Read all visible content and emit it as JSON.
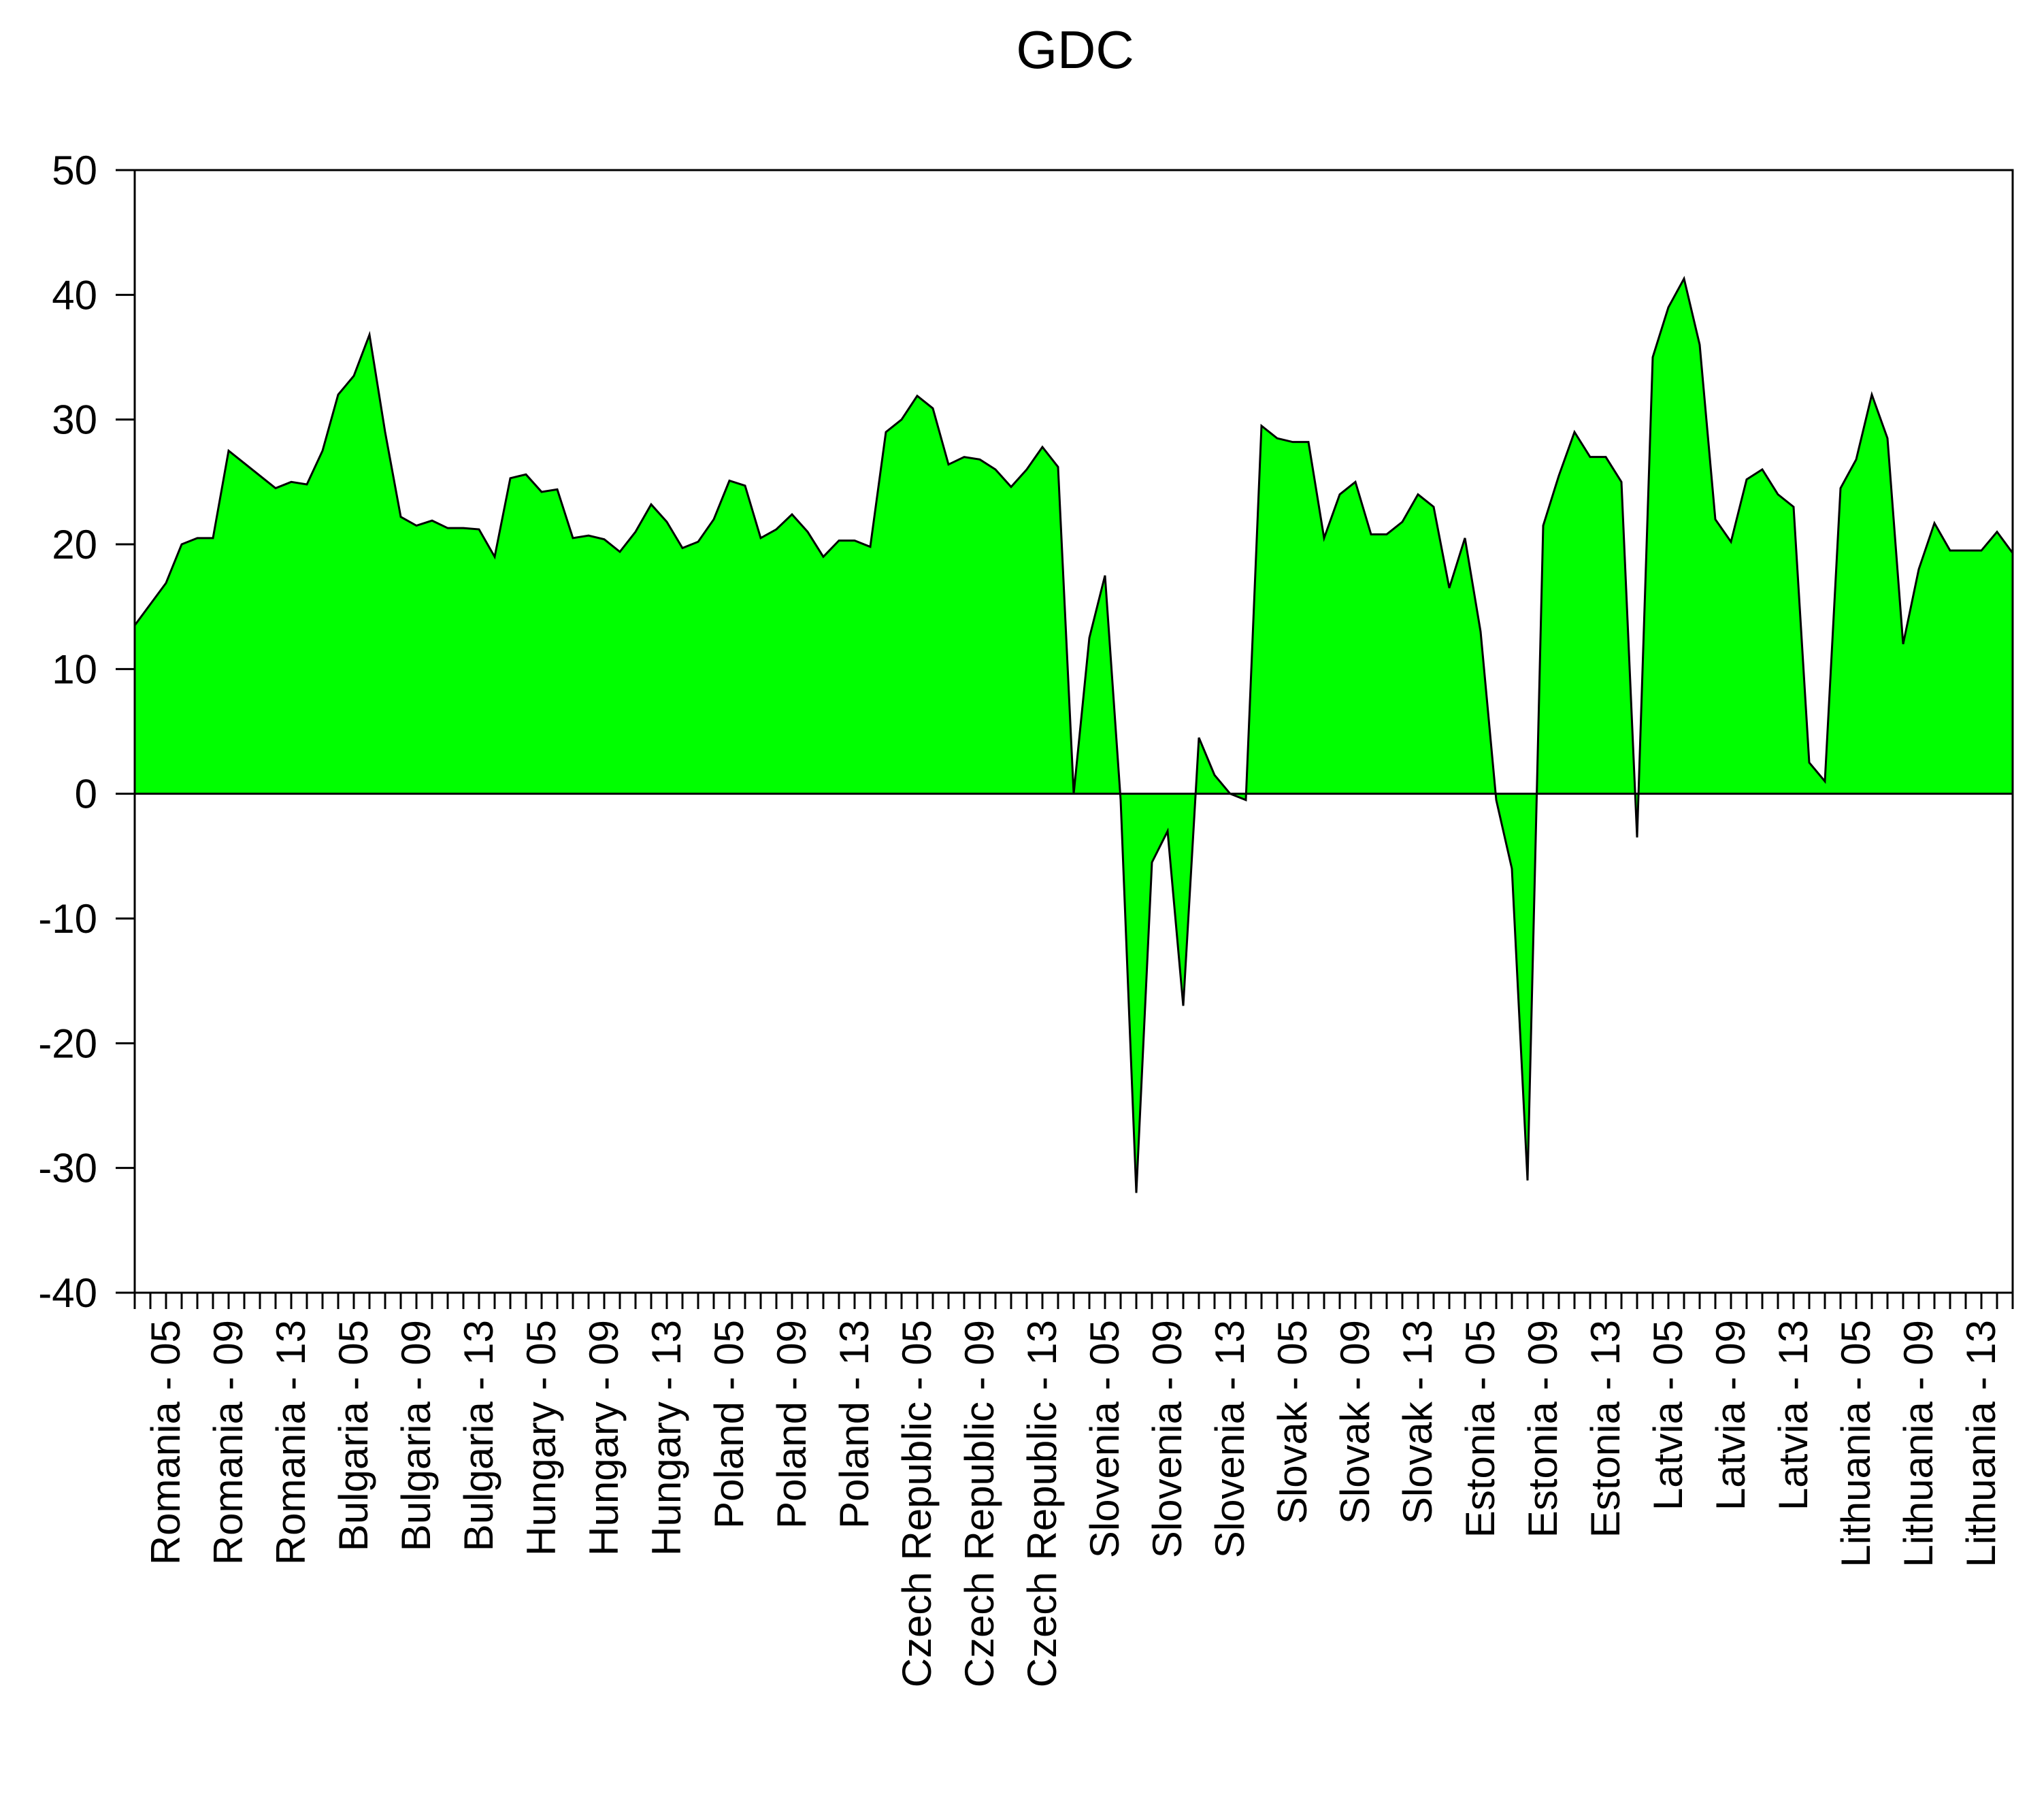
{
  "chart_data": {
    "type": "area",
    "title": "GDC",
    "xlabel": "",
    "ylabel": "",
    "ylim": [
      -40,
      50
    ],
    "yticks": [
      50,
      40,
      30,
      20,
      10,
      0,
      -10,
      -20,
      -30,
      -40
    ],
    "ytick_labels": [
      "50",
      "40",
      "30",
      "20",
      "10",
      "0",
      "-10",
      "-20",
      "-30",
      "-40"
    ],
    "grid": false,
    "legend": "none",
    "colors": {
      "fill": "#00FF00",
      "line": "#000000",
      "zero_line": "#000000",
      "axes": "#000000"
    },
    "x_tick_labels": [
      "Romania - 05",
      "Romania - 09",
      "Romania - 13",
      "Bulgaria - 05",
      "Bulgaria - 09",
      "Bulgaria - 13",
      "Hungary - 05",
      "Hungary - 09",
      "Hungary - 13",
      "Poland - 05",
      "Poland - 09",
      "Poland - 13",
      "Czech Republic - 05",
      "Czech Republic - 09",
      "Czech Republic - 13",
      "Slovenia - 05",
      "Slovenia - 09",
      "Slovenia - 13",
      "Slovak - 05",
      "Slovak - 09",
      "Slovak - 13",
      "Estonia - 05",
      "Estonia - 09",
      "Estonia - 13",
      "Latvia - 05",
      "Latvia - 09",
      "Latvia - 13",
      "Lithuania - 05",
      "Lithuania - 09",
      "Lithuania - 13"
    ],
    "x_tick_positions": [
      2,
      6,
      10,
      14,
      18,
      22,
      26,
      30,
      34,
      38,
      42,
      46,
      50,
      54,
      58,
      62,
      66,
      70,
      74,
      78,
      82,
      86,
      90,
      94,
      98,
      102,
      106,
      110,
      114,
      118
    ],
    "x_count": 121,
    "values": [
      13.5,
      15.2,
      16.9,
      20.0,
      20.5,
      20.5,
      27.5,
      26.5,
      25.5,
      24.5,
      25.0,
      24.8,
      27.5,
      32.0,
      33.5,
      36.8,
      29.0,
      22.2,
      21.5,
      21.9,
      21.3,
      21.3,
      21.2,
      19.0,
      25.3,
      25.6,
      24.2,
      24.4,
      20.5,
      20.7,
      20.4,
      19.4,
      21.0,
      23.2,
      21.8,
      19.7,
      20.2,
      22.0,
      25.1,
      24.7,
      20.5,
      21.2,
      22.4,
      21.0,
      19.0,
      20.3,
      20.3,
      19.8,
      29.0,
      30.0,
      31.9,
      30.9,
      26.4,
      27.0,
      26.8,
      26.0,
      24.6,
      26.0,
      27.8,
      26.2,
      0.0,
      12.5,
      17.5,
      -0.5,
      -32.0,
      -5.5,
      -3.0,
      -17.0,
      4.5,
      1.5,
      0.0,
      -0.5,
      29.5,
      28.5,
      28.2,
      28.2,
      20.5,
      24.0,
      25.0,
      20.8,
      20.8,
      21.8,
      24.0,
      23.0,
      16.5,
      20.5,
      13.0,
      -0.5,
      -6.0,
      -31.0,
      21.5,
      25.5,
      29.0,
      27.0,
      27.0,
      25.0,
      -3.5,
      35.0,
      39.0,
      41.3,
      36.0,
      22.0,
      20.2,
      25.2,
      26.0,
      24.0,
      23.0,
      2.5,
      1.0,
      24.5,
      26.8,
      32.0,
      28.5,
      12.0,
      18.0,
      21.7,
      19.5,
      19.5,
      19.5,
      21.0,
      19.3
    ]
  }
}
